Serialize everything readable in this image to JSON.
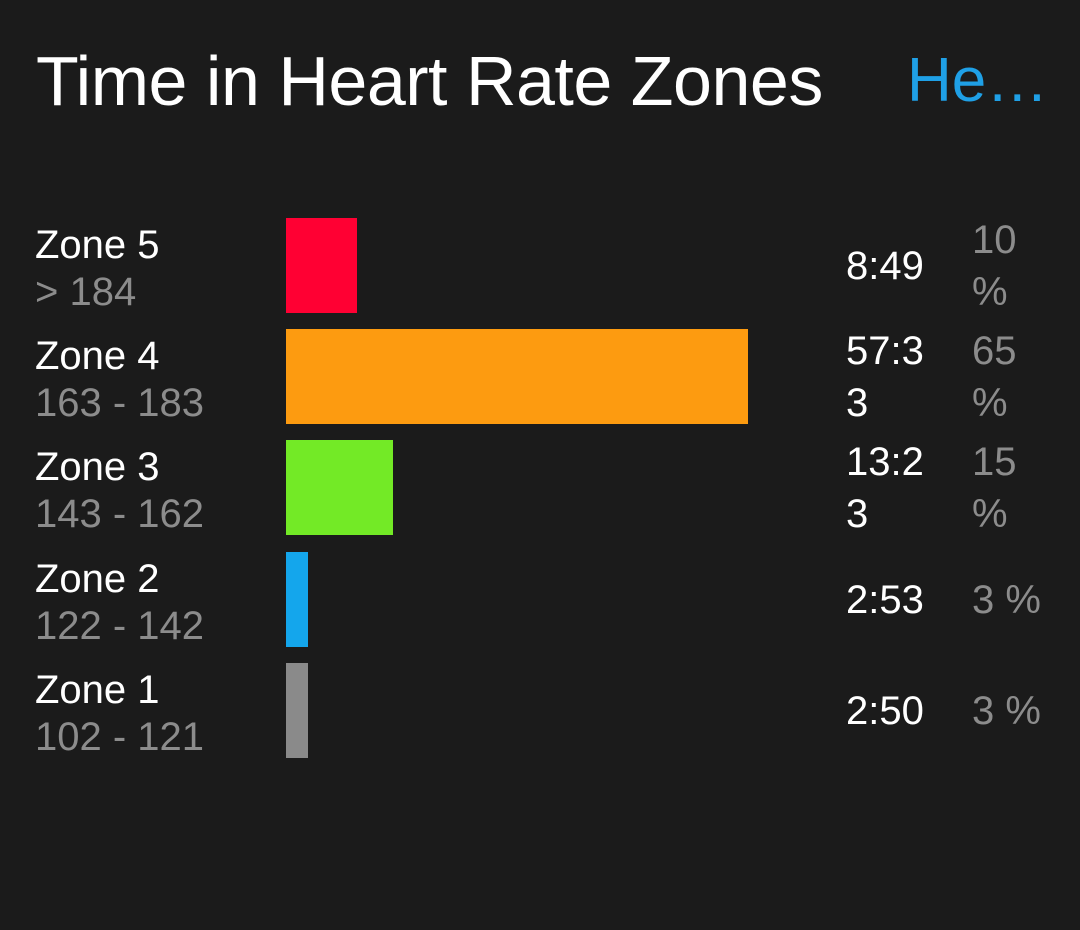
{
  "header": {
    "title": "Time in Heart Rate Zones",
    "link_label": "He…",
    "link_color": "#1fa0e6"
  },
  "zones": [
    {
      "name": "Zone 5",
      "range": "> 184",
      "time": "8:49",
      "percent_label": "10 %",
      "percent": 10,
      "color": "#ff0033"
    },
    {
      "name": "Zone 4",
      "range": "163 - 183",
      "time": "57:33",
      "percent_label": "65 %",
      "percent": 65,
      "color": "#fd9b10"
    },
    {
      "name": "Zone 3",
      "range": "143 - 162",
      "time": "13:23",
      "percent_label": "15 %",
      "percent": 15,
      "color": "#73ea26"
    },
    {
      "name": "Zone 2",
      "range": "122 - 142",
      "time": "2:53",
      "percent_label": "3 %",
      "percent": 3,
      "color": "#14a6ec"
    },
    {
      "name": "Zone 1",
      "range": "102 - 121",
      "time": "2:50",
      "percent_label": "3 %",
      "percent": 3,
      "color": "#8a8a8a"
    }
  ]
}
